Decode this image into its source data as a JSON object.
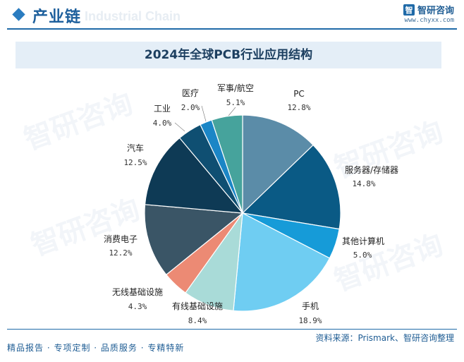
{
  "header": {
    "title": "产业链",
    "ghost_text": "Industrial Chain"
  },
  "brand": {
    "logo_letter": "智",
    "name": "智研咨询",
    "url": "www.chyxx.com"
  },
  "watermark": "智研咨询",
  "footer": {
    "source": "资料来源：Prismark、智研咨询整理",
    "slogan": "精品报告 · 专项定制 · 品质服务 · 专精特新"
  },
  "chart_data": {
    "type": "pie",
    "title": "2024年全球PCB行业应用结构",
    "slices": [
      {
        "label": "PC",
        "value": 12.8,
        "value_label": "12.8%",
        "color": "#5b8ca8"
      },
      {
        "label": "服务器/存储器",
        "value": 14.8,
        "value_label": "14.8%",
        "color": "#0a5a85"
      },
      {
        "label": "其他计算机",
        "value": 5.0,
        "value_label": "5.0%",
        "color": "#169bd8"
      },
      {
        "label": "手机",
        "value": 18.9,
        "value_label": "18.9%",
        "color": "#6fcdf2"
      },
      {
        "label": "有线基础设施",
        "value": 8.4,
        "value_label": "8.4%",
        "color": "#a9dbd8"
      },
      {
        "label": "无线基础设施",
        "value": 4.3,
        "value_label": "4.3%",
        "color": "#ec8a74"
      },
      {
        "label": "消费电子",
        "value": 12.2,
        "value_label": "12.2%",
        "color": "#3a5566"
      },
      {
        "label": "汽车",
        "value": 12.5,
        "value_label": "12.5%",
        "color": "#0e3a55"
      },
      {
        "label": "工业",
        "value": 4.0,
        "value_label": "4.0%",
        "color": "#0f4f72"
      },
      {
        "label": "医疗",
        "value": 2.0,
        "value_label": "2.0%",
        "color": "#1b86c6"
      },
      {
        "label": "军事/航空",
        "value": 5.1,
        "value_label": "5.1%",
        "color": "#46a39c"
      }
    ]
  }
}
